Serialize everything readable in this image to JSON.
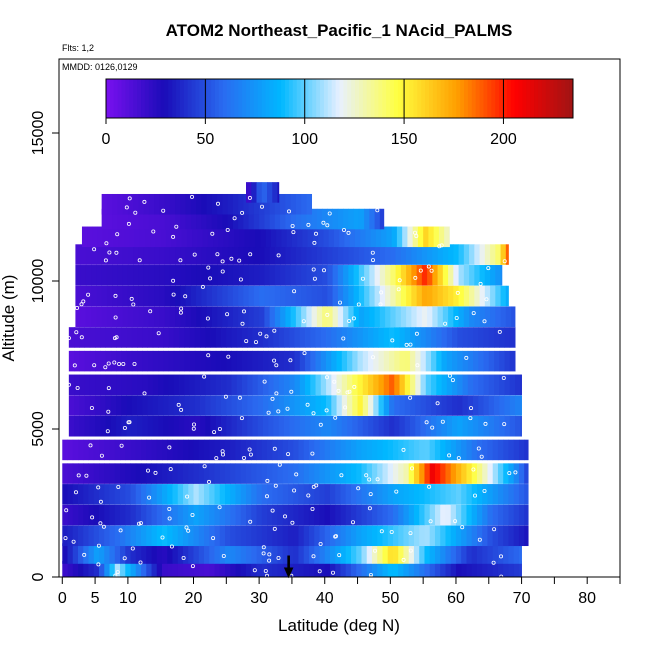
{
  "chart_data": {
    "type": "heatmap",
    "title": "ATOM2 Northeast_Pacific_1 NAcid_PALMS",
    "flights_text": "Flts: 1,2",
    "dates_text": "MMDD: 0126,0129",
    "xlabel": "Latitude (deg N)",
    "ylabel": "Altitude (m)",
    "xlim": [
      -0.5,
      85
    ],
    "ylim": [
      0,
      17500
    ],
    "x_ticks": [
      0,
      5,
      10,
      20,
      30,
      40,
      50,
      60,
      70,
      80
    ],
    "x_minor_ticks": [
      15,
      25,
      35,
      45,
      55,
      65,
      75,
      85
    ],
    "y_ticks": [
      0,
      5000,
      10000,
      15000
    ],
    "colorbar": {
      "min": 0,
      "max": 235,
      "ticks": [
        0,
        50,
        100,
        150,
        200
      ],
      "colors": [
        "#7a10f0",
        "#1a0cb8",
        "#2a6af0",
        "#00b8ff",
        "#e8f0ff",
        "#ffff40",
        "#ffa000",
        "#ff0000",
        "#a01414"
      ]
    },
    "marker": {
      "x": 34.5,
      "direction": "down"
    },
    "altitude_bands": [
      {
        "alt": 200,
        "lat_min": 0,
        "lat_max": 70,
        "segments": [
          [
            0,
            20
          ],
          [
            5,
            40
          ],
          [
            8,
            110
          ],
          [
            15,
            20
          ],
          [
            22,
            15
          ],
          [
            30,
            40
          ],
          [
            40,
            30
          ],
          [
            50,
            90
          ],
          [
            60,
            30
          ],
          [
            70,
            45
          ]
        ]
      },
      {
        "alt": 800,
        "lat_min": 0,
        "lat_max": 70,
        "segments": [
          [
            0,
            30
          ],
          [
            5,
            80
          ],
          [
            10,
            40
          ],
          [
            15,
            25
          ],
          [
            25,
            70
          ],
          [
            35,
            40
          ],
          [
            45,
            100
          ],
          [
            50,
            160
          ],
          [
            55,
            90
          ],
          [
            62,
            40
          ],
          [
            70,
            60
          ]
        ]
      },
      {
        "alt": 1400,
        "lat_min": 0,
        "lat_max": 71,
        "segments": [
          [
            0,
            35
          ],
          [
            8,
            60
          ],
          [
            15,
            90
          ],
          [
            25,
            50
          ],
          [
            35,
            35
          ],
          [
            45,
            80
          ],
          [
            55,
            110
          ],
          [
            65,
            50
          ],
          [
            71,
            30
          ]
        ]
      },
      {
        "alt": 2100,
        "lat_min": 0,
        "lat_max": 71,
        "segments": [
          [
            0,
            20
          ],
          [
            10,
            40
          ],
          [
            20,
            80
          ],
          [
            30,
            45
          ],
          [
            40,
            30
          ],
          [
            50,
            60
          ],
          [
            58,
            120
          ],
          [
            65,
            60
          ],
          [
            71,
            40
          ]
        ]
      },
      {
        "alt": 2800,
        "lat_min": 0,
        "lat_max": 71,
        "segments": [
          [
            0,
            30
          ],
          [
            10,
            50
          ],
          [
            20,
            110
          ],
          [
            30,
            60
          ],
          [
            40,
            45
          ],
          [
            50,
            80
          ],
          [
            60,
            100
          ],
          [
            71,
            50
          ]
        ]
      },
      {
        "alt": 3500,
        "lat_min": 0,
        "lat_max": 71,
        "segments": [
          [
            0,
            15
          ],
          [
            8,
            25
          ],
          [
            20,
            40
          ],
          [
            35,
            60
          ],
          [
            45,
            90
          ],
          [
            52,
            130
          ],
          [
            56,
            210
          ],
          [
            62,
            150
          ],
          [
            68,
            80
          ],
          [
            71,
            40
          ]
        ]
      },
      {
        "alt": 4300,
        "lat_min": 0,
        "lat_max": 71,
        "segments": [
          [
            0,
            10
          ],
          [
            10,
            20
          ],
          [
            25,
            35
          ],
          [
            35,
            50
          ],
          [
            45,
            80
          ],
          [
            55,
            100
          ],
          [
            63,
            60
          ],
          [
            71,
            40
          ]
        ]
      },
      {
        "alt": 5100,
        "lat_min": 1,
        "lat_max": 70,
        "segments": [
          [
            1,
            20
          ],
          [
            10,
            35
          ],
          [
            20,
            25
          ],
          [
            30,
            50
          ],
          [
            40,
            70
          ],
          [
            50,
            40
          ],
          [
            60,
            80
          ],
          [
            70,
            50
          ]
        ]
      },
      {
        "alt": 5800,
        "lat_min": 1,
        "lat_max": 70,
        "segments": [
          [
            1,
            15
          ],
          [
            10,
            30
          ],
          [
            20,
            40
          ],
          [
            30,
            60
          ],
          [
            40,
            90
          ],
          [
            45,
            150
          ],
          [
            50,
            60
          ],
          [
            60,
            40
          ],
          [
            70,
            70
          ]
        ]
      },
      {
        "alt": 6500,
        "lat_min": 1,
        "lat_max": 70,
        "segments": [
          [
            1,
            20
          ],
          [
            12,
            25
          ],
          [
            25,
            40
          ],
          [
            35,
            70
          ],
          [
            45,
            150
          ],
          [
            50,
            190
          ],
          [
            55,
            100
          ],
          [
            62,
            60
          ],
          [
            70,
            40
          ]
        ]
      },
      {
        "alt": 7300,
        "lat_min": 1,
        "lat_max": 69,
        "segments": [
          [
            1,
            10
          ],
          [
            10,
            20
          ],
          [
            25,
            30
          ],
          [
            35,
            40
          ],
          [
            45,
            110
          ],
          [
            52,
            140
          ],
          [
            58,
            80
          ],
          [
            69,
            40
          ]
        ]
      },
      {
        "alt": 8100,
        "lat_min": 1,
        "lat_max": 69,
        "segments": [
          [
            1,
            15
          ],
          [
            15,
            20
          ],
          [
            30,
            40
          ],
          [
            40,
            60
          ],
          [
            50,
            90
          ],
          [
            60,
            50
          ],
          [
            69,
            40
          ]
        ]
      },
      {
        "alt": 8800,
        "lat_min": 2,
        "lat_max": 69,
        "segments": [
          [
            2,
            10
          ],
          [
            15,
            20
          ],
          [
            30,
            45
          ],
          [
            40,
            140
          ],
          [
            45,
            80
          ],
          [
            55,
            120
          ],
          [
            62,
            70
          ],
          [
            69,
            50
          ]
        ]
      },
      {
        "alt": 9500,
        "lat_min": 2,
        "lat_max": 68,
        "segments": [
          [
            2,
            15
          ],
          [
            15,
            25
          ],
          [
            30,
            60
          ],
          [
            40,
            50
          ],
          [
            50,
            130
          ],
          [
            55,
            175
          ],
          [
            60,
            150
          ],
          [
            68,
            80
          ]
        ]
      },
      {
        "alt": 10200,
        "lat_min": 2,
        "lat_max": 67,
        "segments": [
          [
            2,
            20
          ],
          [
            15,
            25
          ],
          [
            30,
            35
          ],
          [
            40,
            50
          ],
          [
            50,
            140
          ],
          [
            55,
            200
          ],
          [
            60,
            110
          ],
          [
            67,
            70
          ]
        ]
      },
      {
        "alt": 10900,
        "lat_min": 2,
        "lat_max": 68,
        "segments": [
          [
            2,
            15
          ],
          [
            15,
            20
          ],
          [
            30,
            30
          ],
          [
            40,
            45
          ],
          [
            50,
            60
          ],
          [
            60,
            90
          ],
          [
            66,
            140
          ],
          [
            68,
            200
          ]
        ]
      },
      {
        "alt": 11500,
        "lat_min": 3,
        "lat_max": 59,
        "segments": [
          [
            3,
            10
          ],
          [
            15,
            15
          ],
          [
            30,
            30
          ],
          [
            40,
            50
          ],
          [
            50,
            80
          ],
          [
            55,
            160
          ],
          [
            59,
            120
          ]
        ]
      },
      {
        "alt": 12100,
        "lat_min": 6,
        "lat_max": 49,
        "segments": [
          [
            6,
            10
          ],
          [
            15,
            15
          ],
          [
            25,
            30
          ],
          [
            35,
            60
          ],
          [
            45,
            80
          ],
          [
            49,
            40
          ]
        ]
      },
      {
        "alt": 12600,
        "lat_min": 6,
        "lat_max": 38,
        "segments": [
          [
            6,
            10
          ],
          [
            15,
            20
          ],
          [
            25,
            35
          ],
          [
            38,
            60
          ]
        ]
      },
      {
        "alt": 13000,
        "lat_min": 28,
        "lat_max": 33,
        "segments": [
          [
            28,
            20
          ],
          [
            30,
            60
          ],
          [
            33,
            30
          ]
        ]
      }
    ]
  }
}
